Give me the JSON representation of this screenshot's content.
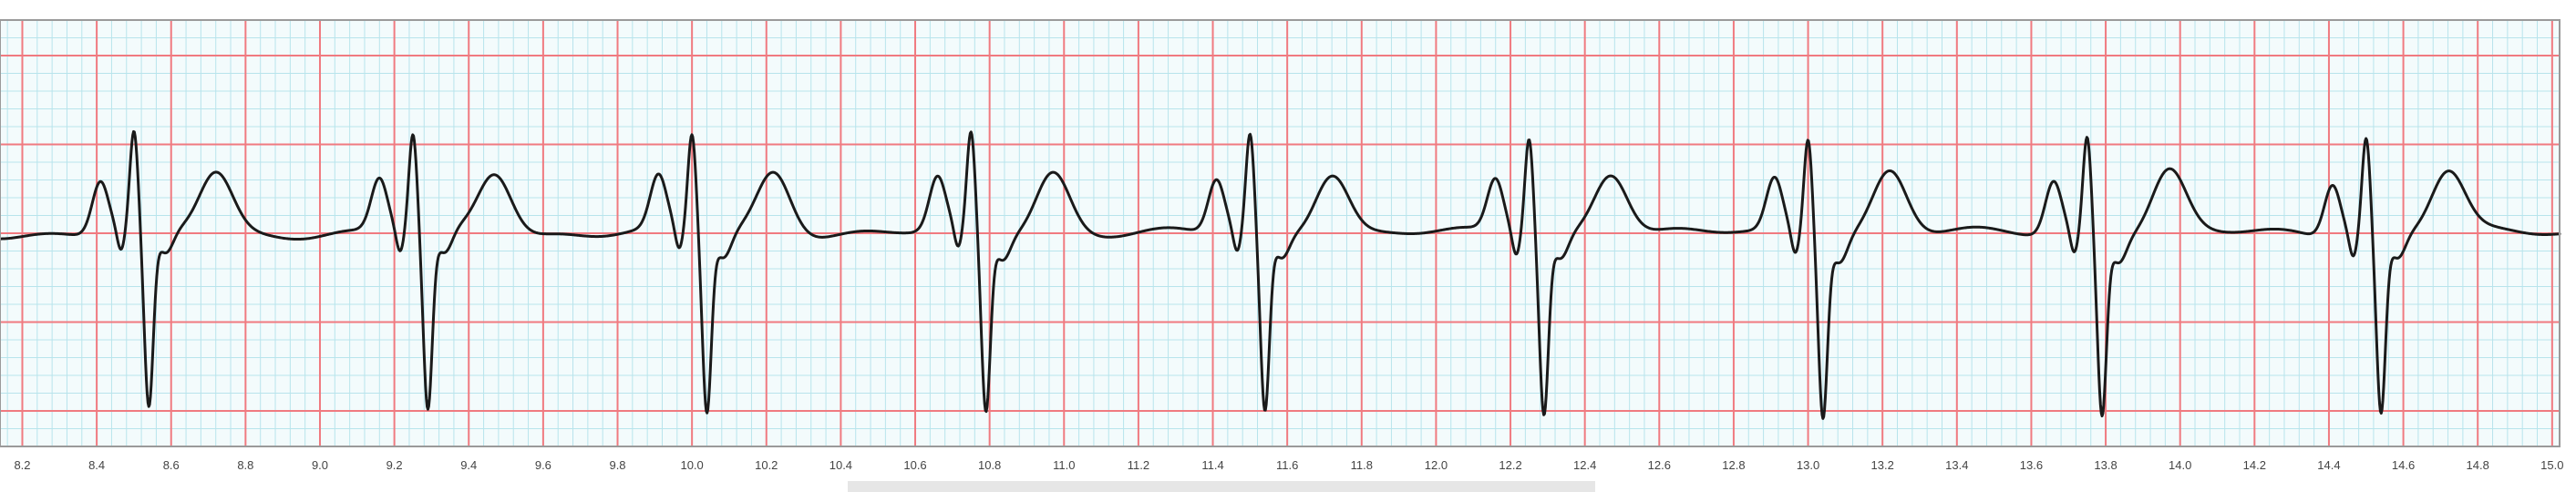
{
  "chart_data": {
    "type": "line",
    "title": "",
    "xlabel": "",
    "ylabel": "",
    "xlim": [
      8.14,
      15.02
    ],
    "ylim": [
      -1.2,
      1.2
    ],
    "grid": true,
    "grid_major_step_s": 0.2,
    "grid_minor_step_s": 0.04,
    "grid_major_step_y": 0.5,
    "grid_minor_step_y": 0.1,
    "x_tick_labels": [
      "8.2",
      "8.4",
      "8.6",
      "8.8",
      "9.0",
      "9.2",
      "9.4",
      "9.6",
      "9.8",
      "10.0",
      "10.2",
      "10.4",
      "10.6",
      "10.8",
      "11.0",
      "11.2",
      "11.4",
      "11.6",
      "11.8",
      "12.0",
      "12.2",
      "12.4",
      "12.6",
      "12.8",
      "13.0",
      "13.2",
      "13.4",
      "13.6",
      "13.8",
      "14.0",
      "14.2",
      "14.4",
      "14.6",
      "14.8",
      "15.0"
    ],
    "x_tick_values": [
      8.2,
      8.4,
      8.6,
      8.8,
      9.0,
      9.2,
      9.4,
      9.6,
      9.8,
      10.0,
      10.2,
      10.4,
      10.6,
      10.8,
      11.0,
      11.2,
      11.4,
      11.6,
      11.8,
      12.0,
      12.2,
      12.4,
      12.6,
      12.8,
      13.0,
      13.2,
      13.4,
      13.6,
      13.8,
      14.0,
      14.2,
      14.4,
      14.6,
      14.8,
      15.0
    ],
    "beat_r_peak_times_s": [
      8.5,
      9.25,
      10.0,
      10.75,
      11.5,
      12.25,
      13.0,
      13.75,
      14.5
    ],
    "beat_template": {
      "p_wave": {
        "offset_s": -0.09,
        "amplitude": 0.3
      },
      "r_wave": {
        "offset_s": 0.0,
        "amplitude": 0.55
      },
      "s_wave": {
        "offset_s": 0.04,
        "amplitude": -1.0
      },
      "t_wave": {
        "offset_s": 0.22,
        "amplitude": 0.35
      }
    },
    "series": [
      {
        "name": "",
        "color": "#1a1a1a"
      }
    ]
  },
  "colors": {
    "background": "#f3fbfc",
    "minor_grid": "#b8e4ec",
    "major_grid": "#f07a80",
    "trace": "#1a1a1a",
    "frame": "#9a9a9a",
    "tick_text": "#444444"
  }
}
